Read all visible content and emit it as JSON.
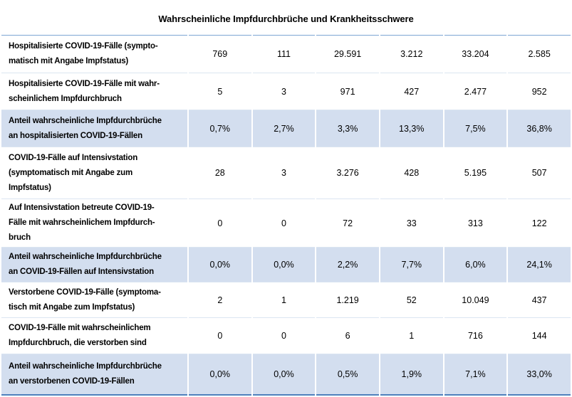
{
  "title": "Wahrscheinliche Impfdurchbrüche und Krankheitsschwere",
  "colors": {
    "highlight_row": "#D3DEEF",
    "top_border": "#7DA5D3",
    "row_separator": "#DBE5F1",
    "bottom_border": "#4F81BD"
  },
  "table": {
    "rows": [
      {
        "label": "Hospitalisierte COVID-19-Fälle (sympto-\nmatisch mit Angabe Impfstatus)",
        "values": [
          "769",
          "111",
          "29.591",
          "3.212",
          "33.204",
          "2.585"
        ]
      },
      {
        "label": "Hospitalisierte COVID-19-Fälle mit wahr-\nscheinlichem Impfdurchbruch",
        "values": [
          "5",
          "3",
          "971",
          "427",
          "2.477",
          "952"
        ]
      },
      {
        "label": "Anteil wahrscheinliche Impfdurchbrüche\nan hospitalisierten COVID-19-Fällen",
        "values": [
          "0,7%",
          "2,7%",
          "3,3%",
          "13,3%",
          "7,5%",
          "36,8%"
        ]
      },
      {
        "label": "COVID-19-Fälle auf Intensivstation\n(symptomatisch mit Angabe zum\nImpfstatus)",
        "values": [
          "28",
          "3",
          "3.276",
          "428",
          "5.195",
          "507"
        ]
      },
      {
        "label": "Auf Intensivstation betreute COVID-19-\nFälle mit wahrscheinlichem Impfdurch-\nbruch",
        "values": [
          "0",
          "0",
          "72",
          "33",
          "313",
          "122"
        ]
      },
      {
        "label": "Anteil wahrscheinliche Impfdurchbrüche\nan COVID-19-Fällen auf Intensivstation",
        "values": [
          "0,0%",
          "0,0%",
          "2,2%",
          "7,7%",
          "6,0%",
          "24,1%"
        ]
      },
      {
        "label": "Verstorbene COVID-19-Fälle (symptoma-\ntisch mit Angabe zum Impfstatus)",
        "values": [
          "2",
          "1",
          "1.219",
          "52",
          "10.049",
          "437"
        ]
      },
      {
        "label": "COVID-19-Fälle mit wahrscheinlichem\nImpfdurchbruch, die verstorben sind",
        "values": [
          "0",
          "0",
          "6",
          "1",
          "716",
          "144"
        ]
      },
      {
        "label": "Anteil wahrscheinliche Impfdurchbrüche\nan verstorbenen COVID-19-Fällen",
        "values": [
          "0,0%",
          "0,0%",
          "0,5%",
          "1,9%",
          "7,1%",
          "33,0%"
        ]
      }
    ]
  }
}
